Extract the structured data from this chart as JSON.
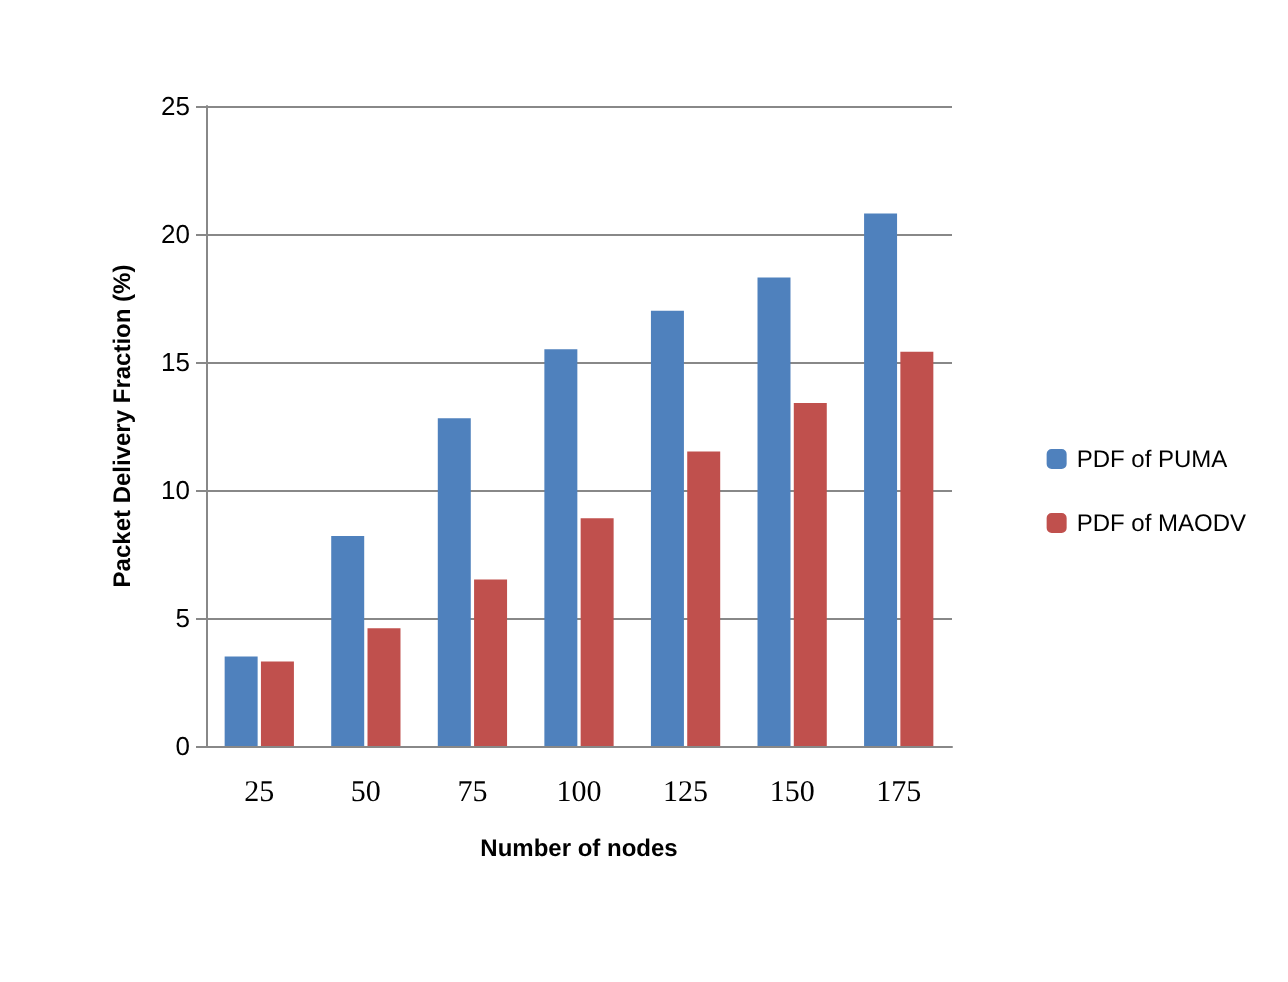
{
  "chart_data": {
    "type": "bar",
    "xlabel": "Number of nodes",
    "ylabel": "Packet Delivery Fraction (%)",
    "categories": [
      "25",
      "50",
      "75",
      "100",
      "125",
      "150",
      "175"
    ],
    "series": [
      {
        "name": "PDF of PUMA",
        "color": "#4f81bd",
        "values": [
          3.5,
          8.2,
          12.8,
          15.5,
          17,
          18.3,
          20.8
        ]
      },
      {
        "name": "PDF of MAODV",
        "color": "#c0504d",
        "values": [
          3.3,
          4.6,
          6.5,
          8.9,
          11.5,
          13.4,
          15.4
        ]
      }
    ],
    "ylim": [
      0,
      25
    ],
    "yticks": [
      0,
      5,
      10,
      15,
      20,
      25
    ],
    "grid": "y",
    "legend": "right"
  }
}
